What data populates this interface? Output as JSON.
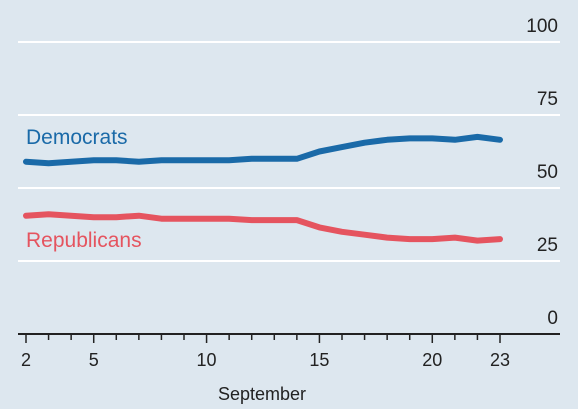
{
  "chart_data": {
    "type": "line",
    "xlabel": "September",
    "ylabel": "",
    "xlim": [
      2,
      23
    ],
    "ylim": [
      0,
      100
    ],
    "x_ticks": [
      2,
      5,
      10,
      15,
      20,
      23
    ],
    "y_ticks": [
      0,
      25,
      50,
      75,
      100
    ],
    "grid": true,
    "colors": {
      "background": "#dde7ef",
      "grid": "#ffffff",
      "axis": "#222222"
    },
    "series": [
      {
        "name": "Democrats",
        "color": "#1a6aa8",
        "x": [
          2,
          3,
          4,
          5,
          6,
          7,
          8,
          9,
          10,
          11,
          12,
          13,
          14,
          15,
          16,
          17,
          18,
          19,
          20,
          21,
          22,
          23
        ],
        "values": [
          59,
          58.5,
          59,
          59.5,
          59.5,
          59,
          59.5,
          59.5,
          59.5,
          59.5,
          60,
          60,
          60,
          62.5,
          64,
          65.5,
          66.5,
          67,
          67,
          66.5,
          67.5,
          66.5
        ]
      },
      {
        "name": "Republicans",
        "color": "#e5545f",
        "x": [
          2,
          3,
          4,
          5,
          6,
          7,
          8,
          9,
          10,
          11,
          12,
          13,
          14,
          15,
          16,
          17,
          18,
          19,
          20,
          21,
          22,
          23
        ],
        "values": [
          40.5,
          41,
          40.5,
          40,
          40,
          40.5,
          39.5,
          39.5,
          39.5,
          39.5,
          39,
          39,
          39,
          36.5,
          35,
          34,
          33,
          32.5,
          32.5,
          33,
          32,
          32.5
        ]
      }
    ]
  }
}
